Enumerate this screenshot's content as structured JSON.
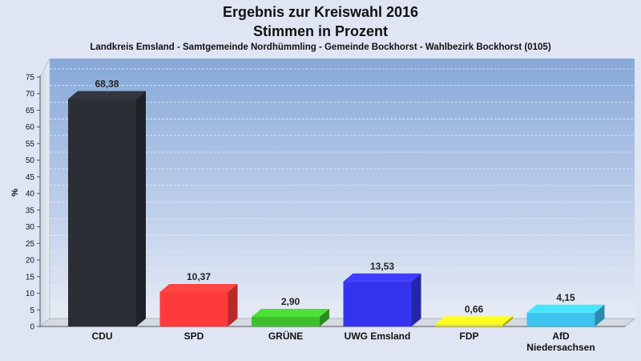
{
  "header": {
    "title_line1": "Ergebnis zur Kreiswahl 2016",
    "title_line2": "Stimmen in Prozent",
    "subtitle": "Landkreis Emsland - Samtgemeinde Nordhümmling - Gemeinde Bockhorst - Wahlbezirk Bockhorst (0105)"
  },
  "chart_data": {
    "type": "bar",
    "title": "Ergebnis zur Kreiswahl 2016 Stimmen in Prozent",
    "subtitle": "Landkreis Emsland - Samtgemeinde Nordhümmling - Gemeinde Bockhorst - Wahlbezirk Bockhorst (0105)",
    "xlabel": "",
    "ylabel": "%",
    "ylim": [
      0,
      75
    ],
    "yticks": [
      0,
      5,
      10,
      15,
      20,
      25,
      30,
      35,
      40,
      45,
      50,
      55,
      60,
      65,
      70,
      75
    ],
    "grid": true,
    "categories": [
      "CDU",
      "SPD",
      "GRÜNE",
      "UWG Emsland",
      "FDP",
      "AfD Niedersachsen"
    ],
    "category_lines": [
      [
        "CDU"
      ],
      [
        "SPD"
      ],
      [
        "GRÜNE"
      ],
      [
        "UWG Emsland"
      ],
      [
        "FDP"
      ],
      [
        "AfD",
        "Niedersachsen"
      ]
    ],
    "values": [
      68.38,
      10.37,
      2.9,
      13.53,
      0.66,
      4.15
    ],
    "value_labels": [
      "68,38",
      "10,37",
      "2,90",
      "13,53",
      "0,66",
      "4,15"
    ],
    "colors": [
      "#2b2e35",
      "#ff3a3a",
      "#3fbf2f",
      "#3434ee",
      "#e6e21a",
      "#3cc3f0"
    ]
  }
}
